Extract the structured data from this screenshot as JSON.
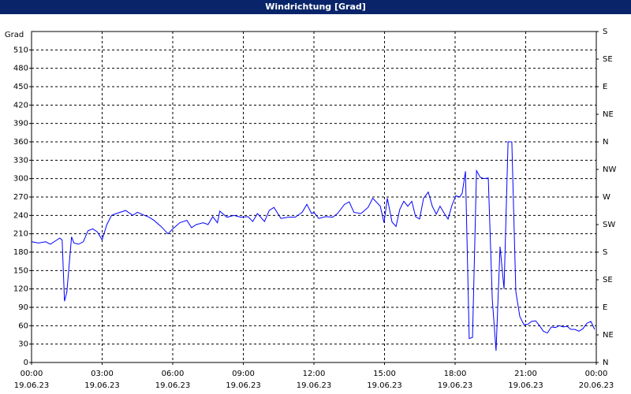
{
  "chart_data": {
    "type": "line",
    "title": "Windrichtung [Grad]",
    "y_label": "Grad",
    "color": "#0000ff",
    "grid": true,
    "xlim": [
      0,
      24
    ],
    "xticks": [
      {
        "value": 0,
        "label": "00:00",
        "date": "19.06.23"
      },
      {
        "value": 3,
        "label": "03:00",
        "date": "19.06.23"
      },
      {
        "value": 6,
        "label": "06:00",
        "date": "19.06.23"
      },
      {
        "value": 9,
        "label": "09:00",
        "date": "19.06.23"
      },
      {
        "value": 12,
        "label": "12:00",
        "date": "19.06.23"
      },
      {
        "value": 15,
        "label": "15:00",
        "date": "19.06.23"
      },
      {
        "value": 18,
        "label": "18:00",
        "date": "19.06.23"
      },
      {
        "value": 21,
        "label": "21:00",
        "date": "19.06.23"
      },
      {
        "value": 24,
        "label": "00:00",
        "date": "20.06.23"
      }
    ],
    "ylim": [
      0,
      540
    ],
    "yticks": [
      0,
      30,
      60,
      90,
      120,
      150,
      180,
      210,
      240,
      270,
      300,
      330,
      360,
      390,
      420,
      450,
      480,
      510
    ],
    "y2lim": [
      0,
      540
    ],
    "y2ticks": [
      {
        "value": 0,
        "label": "N"
      },
      {
        "value": 45,
        "label": "NE"
      },
      {
        "value": 90,
        "label": "E"
      },
      {
        "value": 135,
        "label": "SE"
      },
      {
        "value": 180,
        "label": "S"
      },
      {
        "value": 225,
        "label": "SW"
      },
      {
        "value": 270,
        "label": "W"
      },
      {
        "value": 315,
        "label": "NW"
      },
      {
        "value": 360,
        "label": "N"
      },
      {
        "value": 405,
        "label": "NE"
      },
      {
        "value": 450,
        "label": "E"
      },
      {
        "value": 495,
        "label": "SE"
      },
      {
        "value": 540,
        "label": "S"
      }
    ],
    "x": [
      0,
      0.3,
      0.6,
      0.8,
      1.0,
      1.2,
      1.3,
      1.4,
      1.5,
      1.7,
      1.8,
      2.0,
      2.2,
      2.4,
      2.6,
      2.8,
      3.0,
      3.2,
      3.4,
      3.6,
      4.0,
      4.3,
      4.5,
      4.8,
      5.0,
      5.2,
      5.5,
      5.8,
      6.0,
      6.3,
      6.6,
      6.8,
      7.0,
      7.3,
      7.5,
      7.7,
      7.9,
      8.0,
      8.3,
      8.6,
      8.9,
      9.2,
      9.4,
      9.6,
      9.9,
      10.1,
      10.3,
      10.6,
      10.9,
      11.2,
      11.5,
      11.7,
      11.9,
      12.0,
      12.2,
      12.5,
      12.8,
      13.0,
      13.3,
      13.5,
      13.7,
      14.0,
      14.3,
      14.5,
      14.82,
      14.98,
      15.12,
      15.32,
      15.49,
      15.65,
      15.82,
      15.99,
      16.16,
      16.32,
      16.49,
      16.66,
      16.86,
      17.03,
      17.2,
      17.36,
      17.53,
      17.7,
      17.87,
      18.03,
      18.2,
      18.3,
      18.44,
      18.6,
      18.74,
      18.91,
      19.07,
      19.24,
      19.41,
      19.58,
      19.74,
      19.91,
      20.08,
      20.25,
      20.41,
      20.58,
      20.75,
      20.92,
      21.08,
      21.25,
      21.42,
      21.59,
      21.75,
      21.92,
      22.09,
      22.26,
      22.42,
      22.59,
      22.76,
      22.92,
      23.09,
      23.26,
      23.43,
      23.6,
      23.77,
      23.93
    ],
    "values": [
      197,
      195,
      197,
      193,
      198,
      203,
      200,
      100,
      115,
      205,
      195,
      193,
      197,
      215,
      218,
      213,
      200,
      225,
      240,
      243,
      248,
      240,
      245,
      240,
      237,
      232,
      222,
      210,
      218,
      228,
      232,
      220,
      225,
      228,
      225,
      238,
      228,
      247,
      237,
      240,
      237,
      238,
      230,
      243,
      230,
      248,
      253,
      235,
      237,
      237,
      245,
      258,
      243,
      245,
      235,
      238,
      237,
      243,
      258,
      262,
      245,
      243,
      253,
      268,
      255,
      228,
      268,
      229,
      222,
      250,
      263,
      255,
      263,
      238,
      234,
      268,
      278,
      255,
      242,
      255,
      244,
      234,
      257,
      272,
      270,
      276,
      312,
      39,
      41,
      313,
      302,
      300,
      301,
      103,
      19,
      189,
      120,
      360,
      360,
      116,
      75,
      62,
      62,
      67,
      68,
      60,
      51,
      48,
      58,
      57,
      60,
      58,
      59,
      54,
      54,
      51,
      55,
      64,
      67,
      54
    ]
  }
}
